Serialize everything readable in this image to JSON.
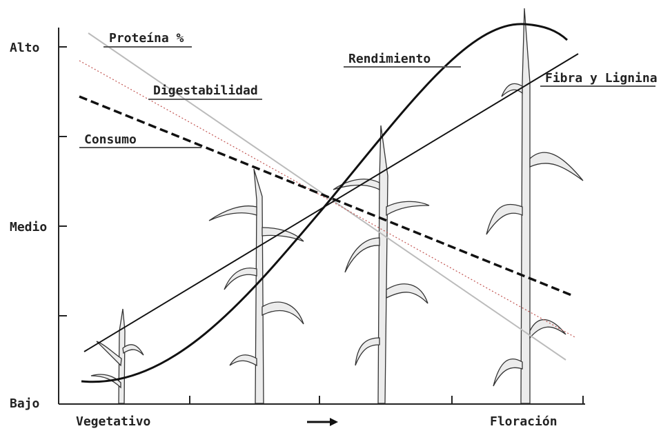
{
  "y_axis": {
    "labels": [
      "Alto",
      "Medio",
      "Bajo"
    ]
  },
  "x_axis": {
    "start": "Vegetativo",
    "end": "Floración"
  },
  "curves": [
    {
      "label": "Proteína %"
    },
    {
      "label": "Digestabilidad"
    },
    {
      "label": "Consumo"
    },
    {
      "label": "Rendimiento"
    },
    {
      "label": "Fibra y Lignina"
    }
  ]
}
